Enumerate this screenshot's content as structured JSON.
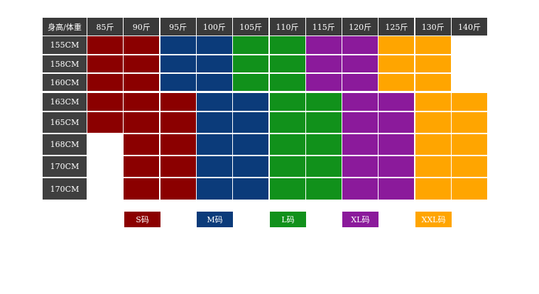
{
  "table": {
    "header": [
      "身高/体重",
      "85斤",
      "90斤",
      "95斤",
      "100斤",
      "105斤",
      "110斤",
      "115斤",
      "120斤",
      "125斤",
      "130斤",
      "140斤"
    ],
    "rows": [
      {
        "label": "155CM",
        "cells": [
          "#8b0000",
          "#8b0000",
          "#0b3b7a",
          "#0b3b7a",
          "#11911b",
          "#11911b",
          "#8b1a9b",
          "#8b1a9b",
          "#ffa500",
          "#ffa500",
          null
        ]
      },
      {
        "label": "158CM",
        "cells": [
          "#8b0000",
          "#8b0000",
          "#0b3b7a",
          "#0b3b7a",
          "#11911b",
          "#11911b",
          "#8b1a9b",
          "#8b1a9b",
          "#ffa500",
          "#ffa500",
          null
        ]
      },
      {
        "label": "160CM",
        "cells": [
          "#8b0000",
          "#8b0000",
          "#0b3b7a",
          "#0b3b7a",
          "#11911b",
          "#11911b",
          "#8b1a9b",
          "#8b1a9b",
          "#ffa500",
          "#ffa500",
          null
        ]
      },
      {
        "label": "163CM",
        "cells": [
          "#8b0000",
          "#8b0000",
          "#8b0000",
          "#0b3b7a",
          "#0b3b7a",
          "#11911b",
          "#11911b",
          "#8b1a9b",
          "#8b1a9b",
          "#ffa500",
          "#ffa500"
        ]
      },
      {
        "label": "165CM",
        "cells": [
          "#8b0000",
          "#8b0000",
          "#8b0000",
          "#0b3b7a",
          "#0b3b7a",
          "#11911b",
          "#11911b",
          "#8b1a9b",
          "#8b1a9b",
          "#ffa500",
          "#ffa500"
        ]
      },
      {
        "label": "168CM",
        "cells": [
          null,
          "#8b0000",
          "#8b0000",
          "#0b3b7a",
          "#0b3b7a",
          "#11911b",
          "#11911b",
          "#8b1a9b",
          "#8b1a9b",
          "#ffa500",
          "#ffa500"
        ]
      },
      {
        "label": "170CM",
        "cells": [
          null,
          "#8b0000",
          "#8b0000",
          "#0b3b7a",
          "#0b3b7a",
          "#11911b",
          "#11911b",
          "#8b1a9b",
          "#8b1a9b",
          "#ffa500",
          "#ffa500"
        ]
      },
      {
        "label": "170CM",
        "cells": [
          null,
          "#8b0000",
          "#8b0000",
          "#0b3b7a",
          "#0b3b7a",
          "#11911b",
          "#11911b",
          "#8b1a9b",
          "#8b1a9b",
          "#ffa500",
          "#ffa500"
        ]
      }
    ]
  },
  "legend": [
    {
      "label": "S码",
      "color": "#8b0000"
    },
    {
      "label": "M码",
      "color": "#0b3b7a"
    },
    {
      "label": "L码",
      "color": "#11911b"
    },
    {
      "label": "XL码",
      "color": "#8b1a9b"
    },
    {
      "label": "XXL码",
      "color": "#ffa500"
    }
  ]
}
